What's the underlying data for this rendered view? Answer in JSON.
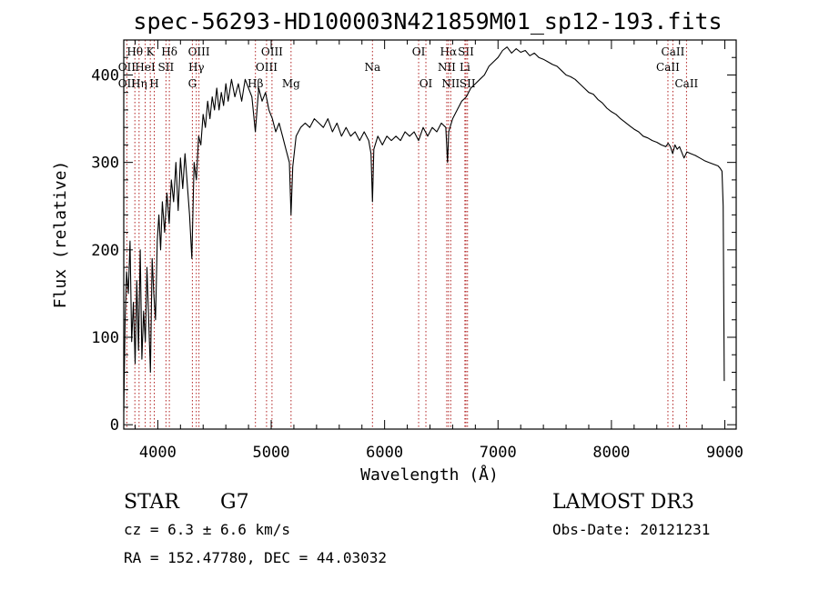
{
  "chart_data": {
    "type": "line",
    "title": "spec-56293-HD100003N421859M01_sp12-193.fits",
    "xlabel": "Wavelength (Å)",
    "ylabel": "Flux (relative)",
    "xlim": [
      3700,
      9100
    ],
    "ylim": [
      -5,
      440
    ],
    "xticks": [
      4000,
      5000,
      6000,
      7000,
      8000,
      9000
    ],
    "yticks": [
      0,
      100,
      200,
      300,
      400
    ],
    "grid": false,
    "series": [
      {
        "points": [
          [
            3700,
            15
          ],
          [
            3712,
            120
          ],
          [
            3725,
            175
          ],
          [
            3740,
            150
          ],
          [
            3755,
            210
          ],
          [
            3770,
            95
          ],
          [
            3785,
            140
          ],
          [
            3800,
            70
          ],
          [
            3815,
            165
          ],
          [
            3830,
            85
          ],
          [
            3845,
            200
          ],
          [
            3860,
            75
          ],
          [
            3875,
            130
          ],
          [
            3890,
            95
          ],
          [
            3905,
            180
          ],
          [
            3920,
            120
          ],
          [
            3935,
            60
          ],
          [
            3950,
            190
          ],
          [
            3965,
            150
          ],
          [
            3980,
            120
          ],
          [
            3995,
            210
          ],
          [
            4010,
            240
          ],
          [
            4025,
            200
          ],
          [
            4040,
            255
          ],
          [
            4060,
            220
          ],
          [
            4080,
            265
          ],
          [
            4100,
            230
          ],
          [
            4120,
            280
          ],
          [
            4140,
            255
          ],
          [
            4160,
            300
          ],
          [
            4180,
            245
          ],
          [
            4200,
            305
          ],
          [
            4220,
            270
          ],
          [
            4240,
            310
          ],
          [
            4260,
            275
          ],
          [
            4280,
            240
          ],
          [
            4300,
            190
          ],
          [
            4320,
            300
          ],
          [
            4340,
            280
          ],
          [
            4360,
            330
          ],
          [
            4380,
            320
          ],
          [
            4400,
            355
          ],
          [
            4420,
            340
          ],
          [
            4440,
            370
          ],
          [
            4460,
            350
          ],
          [
            4480,
            375
          ],
          [
            4500,
            360
          ],
          [
            4520,
            385
          ],
          [
            4540,
            360
          ],
          [
            4560,
            380
          ],
          [
            4580,
            365
          ],
          [
            4600,
            390
          ],
          [
            4620,
            370
          ],
          [
            4650,
            395
          ],
          [
            4680,
            375
          ],
          [
            4710,
            390
          ],
          [
            4740,
            370
          ],
          [
            4770,
            395
          ],
          [
            4800,
            385
          ],
          [
            4830,
            375
          ],
          [
            4860,
            335
          ],
          [
            4890,
            385
          ],
          [
            4920,
            370
          ],
          [
            4950,
            380
          ],
          [
            4980,
            360
          ],
          [
            5010,
            350
          ],
          [
            5040,
            335
          ],
          [
            5070,
            345
          ],
          [
            5100,
            330
          ],
          [
            5130,
            315
          ],
          [
            5160,
            300
          ],
          [
            5175,
            240
          ],
          [
            5190,
            295
          ],
          [
            5220,
            330
          ],
          [
            5260,
            340
          ],
          [
            5300,
            345
          ],
          [
            5340,
            340
          ],
          [
            5380,
            350
          ],
          [
            5420,
            345
          ],
          [
            5460,
            340
          ],
          [
            5500,
            350
          ],
          [
            5540,
            335
          ],
          [
            5580,
            345
          ],
          [
            5620,
            330
          ],
          [
            5660,
            340
          ],
          [
            5700,
            330
          ],
          [
            5740,
            335
          ],
          [
            5780,
            325
          ],
          [
            5820,
            335
          ],
          [
            5860,
            325
          ],
          [
            5880,
            310
          ],
          [
            5893,
            255
          ],
          [
            5905,
            315
          ],
          [
            5940,
            330
          ],
          [
            5980,
            320
          ],
          [
            6020,
            330
          ],
          [
            6060,
            325
          ],
          [
            6100,
            330
          ],
          [
            6140,
            325
          ],
          [
            6180,
            335
          ],
          [
            6220,
            330
          ],
          [
            6260,
            335
          ],
          [
            6300,
            325
          ],
          [
            6340,
            340
          ],
          [
            6380,
            330
          ],
          [
            6420,
            340
          ],
          [
            6460,
            335
          ],
          [
            6500,
            345
          ],
          [
            6540,
            340
          ],
          [
            6555,
            300
          ],
          [
            6565,
            335
          ],
          [
            6600,
            350
          ],
          [
            6640,
            360
          ],
          [
            6680,
            370
          ],
          [
            6720,
            375
          ],
          [
            6760,
            385
          ],
          [
            6800,
            390
          ],
          [
            6840,
            395
          ],
          [
            6880,
            400
          ],
          [
            6920,
            410
          ],
          [
            6960,
            415
          ],
          [
            7000,
            420
          ],
          [
            7040,
            428
          ],
          [
            7080,
            432
          ],
          [
            7120,
            425
          ],
          [
            7160,
            430
          ],
          [
            7200,
            426
          ],
          [
            7240,
            428
          ],
          [
            7280,
            422
          ],
          [
            7320,
            425
          ],
          [
            7360,
            420
          ],
          [
            7400,
            418
          ],
          [
            7440,
            415
          ],
          [
            7480,
            412
          ],
          [
            7520,
            410
          ],
          [
            7560,
            405
          ],
          [
            7600,
            400
          ],
          [
            7640,
            398
          ],
          [
            7680,
            395
          ],
          [
            7720,
            390
          ],
          [
            7760,
            385
          ],
          [
            7800,
            380
          ],
          [
            7840,
            378
          ],
          [
            7880,
            372
          ],
          [
            7920,
            368
          ],
          [
            7960,
            362
          ],
          [
            8000,
            358
          ],
          [
            8040,
            355
          ],
          [
            8080,
            350
          ],
          [
            8120,
            346
          ],
          [
            8160,
            342
          ],
          [
            8200,
            338
          ],
          [
            8240,
            335
          ],
          [
            8280,
            330
          ],
          [
            8320,
            328
          ],
          [
            8360,
            325
          ],
          [
            8400,
            323
          ],
          [
            8440,
            320
          ],
          [
            8480,
            318
          ],
          [
            8500,
            322
          ],
          [
            8520,
            318
          ],
          [
            8540,
            310
          ],
          [
            8560,
            320
          ],
          [
            8580,
            315
          ],
          [
            8600,
            318
          ],
          [
            8640,
            305
          ],
          [
            8665,
            312
          ],
          [
            8700,
            310
          ],
          [
            8740,
            308
          ],
          [
            8780,
            305
          ],
          [
            8820,
            302
          ],
          [
            8860,
            300
          ],
          [
            8900,
            298
          ],
          [
            8940,
            296
          ],
          [
            8960,
            293
          ],
          [
            8975,
            290
          ],
          [
            8985,
            250
          ],
          [
            8995,
            50
          ]
        ]
      }
    ],
    "line_markers": [
      {
        "label": "Hθ",
        "x": 3798,
        "row": 0
      },
      {
        "label": "OII",
        "x": 3727,
        "row": 1
      },
      {
        "label": "OII",
        "x": 3727,
        "row": 2
      },
      {
        "label": "Hη",
        "x": 3835,
        "row": 2
      },
      {
        "label": "K",
        "x": 3934,
        "row": 0
      },
      {
        "label": "HeI",
        "x": 3889,
        "row": 1
      },
      {
        "label": "H",
        "x": 3969,
        "row": 2
      },
      {
        "label": "Hδ",
        "x": 4102,
        "row": 0
      },
      {
        "label": "SII",
        "x": 4072,
        "row": 1
      },
      {
        "label": "OIII",
        "x": 4363,
        "row": 0
      },
      {
        "label": "Hγ",
        "x": 4340,
        "row": 1
      },
      {
        "label": "G",
        "x": 4305,
        "row": 2
      },
      {
        "label": "OIII",
        "x": 5007,
        "row": 0
      },
      {
        "label": "OIII",
        "x": 4959,
        "row": 1
      },
      {
        "label": "Hβ",
        "x": 4861,
        "row": 2
      },
      {
        "label": "Mg",
        "x": 5175,
        "row": 2
      },
      {
        "label": "Na",
        "x": 5893,
        "row": 1
      },
      {
        "label": "OI",
        "x": 6300,
        "row": 0
      },
      {
        "label": "OI",
        "x": 6364,
        "row": 2
      },
      {
        "label": "Hα",
        "x": 6563,
        "row": 0
      },
      {
        "label": "SII",
        "x": 6717,
        "row": 0
      },
      {
        "label": "NII",
        "x": 6548,
        "row": 1
      },
      {
        "label": "Li",
        "x": 6708,
        "row": 1
      },
      {
        "label": "NII",
        "x": 6583,
        "row": 2
      },
      {
        "label": "SII",
        "x": 6731,
        "row": 2
      },
      {
        "label": "CaII",
        "x": 8542,
        "row": 0
      },
      {
        "label": "CaII",
        "x": 8498,
        "row": 1
      },
      {
        "label": "CaII",
        "x": 8662,
        "row": 2
      }
    ],
    "marker_color": "#b22222"
  },
  "info": {
    "class_label": "STAR",
    "subclass": "G7",
    "survey": "LAMOST DR3",
    "cz": "cz = 6.3 ± 6.6 km/s",
    "obs_date": "Obs-Date: 20121231",
    "coords": "RA = 152.47780, DEC =  44.03032"
  }
}
